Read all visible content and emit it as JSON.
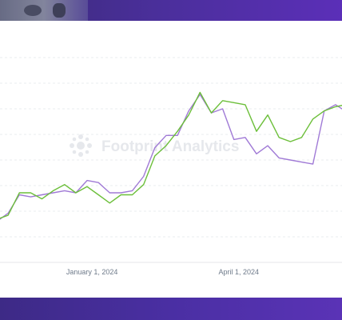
{
  "watermark": {
    "text": "Footprint Analytics",
    "icon": "footprint-logo-icon"
  },
  "colors": {
    "banner": "#4a2f9a",
    "grid": "#e4e6ea",
    "series_purple": "#a07ad6",
    "series_green": "#6cbf3a",
    "axis_text": "#6e7a8a",
    "watermark": "#e6e8ec"
  },
  "chart_data": {
    "type": "line",
    "title": "",
    "xlabel": "",
    "ylabel": "",
    "x_ticks": [
      "January 1, 2024",
      "April 1, 2024"
    ],
    "x_range": [
      "2023-11-03",
      "2024-06-06"
    ],
    "ylim": [
      0,
      100
    ],
    "grid": true,
    "legend": "none",
    "x": [
      "2023-11-03",
      "2023-11-10",
      "2023-11-17",
      "2023-11-24",
      "2023-12-01",
      "2023-12-08",
      "2023-12-15",
      "2023-12-22",
      "2023-12-29",
      "2024-01-05",
      "2024-01-12",
      "2024-01-19",
      "2024-01-26",
      "2024-02-02",
      "2024-02-09",
      "2024-02-16",
      "2024-02-23",
      "2024-03-01",
      "2024-03-08",
      "2024-03-15",
      "2024-03-22",
      "2024-03-29",
      "2024-04-05",
      "2024-04-12",
      "2024-04-19",
      "2024-04-26",
      "2024-05-03",
      "2024-05-10",
      "2024-05-17",
      "2024-05-24",
      "2024-05-31",
      "2024-06-06"
    ],
    "series": [
      {
        "color": "#a07ad6",
        "values": [
          20,
          24,
          33,
          32,
          33,
          34,
          35,
          34,
          40,
          39,
          34,
          34,
          35,
          42,
          56,
          62,
          62,
          74,
          82,
          73,
          75,
          60,
          61,
          53,
          57,
          51,
          50,
          49,
          48,
          74,
          77,
          74
        ]
      },
      {
        "color": "#6cbf3a",
        "values": [
          21,
          23,
          34,
          34,
          31,
          35,
          38,
          34,
          37,
          33,
          29,
          33,
          33,
          38,
          52,
          57,
          64,
          72,
          83,
          73,
          79,
          78,
          77,
          64,
          72,
          61,
          59,
          61,
          70,
          74,
          76,
          77
        ]
      }
    ]
  }
}
